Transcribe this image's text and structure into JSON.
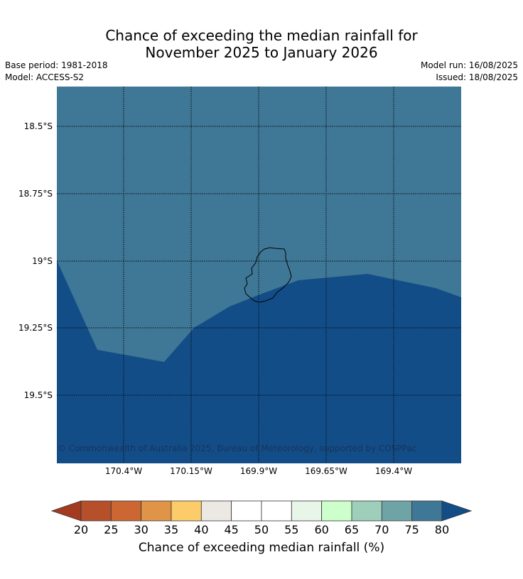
{
  "title_line1": "Chance of exceeding the median rainfall for",
  "title_line2": "November 2025 to January 2026",
  "base_period": "Base period: 1981-2018",
  "model": "Model: ACCESS-S2",
  "model_run": "Model run: 16/08/2025",
  "issued": "Issued: 18/08/2025",
  "copyright": "© Commonwealth of Australia 2025, Bureau of Meteorology, supported by COSPPac",
  "lat_labels": [
    "18.5°S",
    "18.75°S",
    "19°S",
    "19.25°S",
    "19.5°S"
  ],
  "lon_labels": [
    "170.4°W",
    "170.15°W",
    "169.9°W",
    "169.65°W",
    "169.4°W"
  ],
  "colorbar": {
    "title": "Chance of exceeding median rainfall (%)",
    "ticks": [
      "20",
      "25",
      "30",
      "35",
      "40",
      "45",
      "50",
      "55",
      "60",
      "65",
      "70",
      "75",
      "80"
    ],
    "colors": [
      "#a33b20",
      "#b5502a",
      "#cc6733",
      "#e09447",
      "#fdcc6a",
      "#ece8e4",
      "#ffffff",
      "#ffffff",
      "#e8f5e9",
      "#ccffcc",
      "#9ecfba",
      "#6fa4a6",
      "#3f7796",
      "#134d88"
    ]
  },
  "map": {
    "color_75_80": "#3f7796",
    "color_above_80": "#134d88"
  }
}
